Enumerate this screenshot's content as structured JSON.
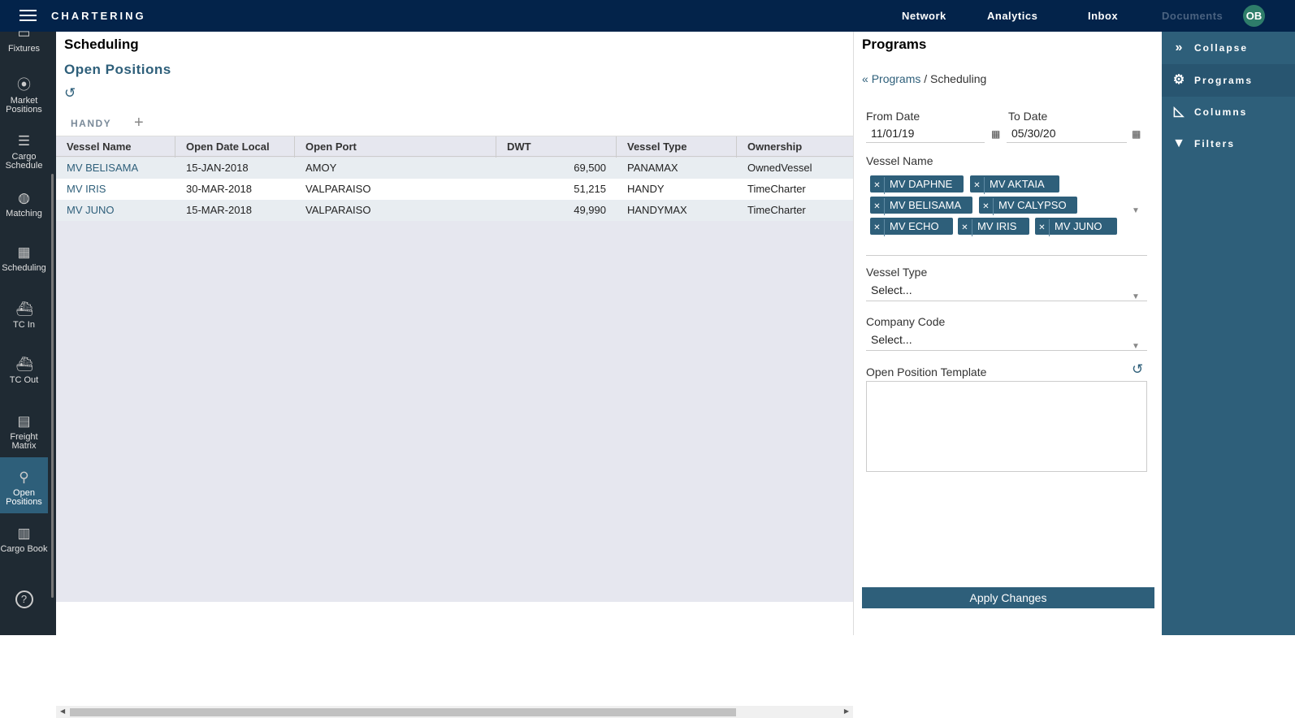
{
  "topbar": {
    "brand": "CHARTERING",
    "nav": [
      "Network",
      "Analytics",
      "Inbox",
      "Documents"
    ],
    "avatar": "OB"
  },
  "sidebar": {
    "items": [
      {
        "label": "Fixtures",
        "icon": "fixtures-icon"
      },
      {
        "label": "Market Positions",
        "icon": "map-pin-icon"
      },
      {
        "label": "Cargo Schedule",
        "icon": "gantt-icon"
      },
      {
        "label": "Matching",
        "icon": "globe-icon"
      },
      {
        "label": "Scheduling",
        "icon": "calendar-icon"
      },
      {
        "label": "TC In",
        "icon": "ship-in-icon"
      },
      {
        "label": "TC Out",
        "icon": "ship-out-icon"
      },
      {
        "label": "Freight Matrix",
        "icon": "matrix-icon"
      },
      {
        "label": "Open Positions",
        "icon": "pin-list-icon",
        "active": true
      },
      {
        "label": "Cargo Book",
        "icon": "book-icon"
      }
    ],
    "help_icon": "help-icon"
  },
  "main": {
    "title": "Scheduling",
    "subtitle": "Open Positions",
    "tab": "HANDY",
    "columns": [
      "Vessel Name",
      "Open Date Local",
      "Open Port",
      "DWT",
      "Vessel Type",
      "Ownership"
    ],
    "rows": [
      [
        "MV BELISAMA",
        "15-JAN-2018",
        "AMOY",
        "69,500",
        "PANAMAX",
        "OwnedVessel"
      ],
      [
        "MV IRIS",
        "30-MAR-2018",
        "VALPARAISO",
        "51,215",
        "HANDY",
        "TimeCharter"
      ],
      [
        "MV JUNO",
        "15-MAR-2018",
        "VALPARAISO",
        "49,990",
        "HANDYMAX",
        "TimeCharter"
      ]
    ]
  },
  "panel": {
    "title": "Programs",
    "crumb_link": "Programs",
    "crumb_sep": "/",
    "crumb_current": "Scheduling",
    "from_label": "From Date",
    "from_value": "11/01/19",
    "to_label": "To Date",
    "to_value": "05/30/20",
    "vessel_label": "Vessel Name",
    "vessels": [
      "MV DAPHNE",
      "MV AKTAIA",
      "MV BELISAMA",
      "MV CALYPSO",
      "MV ECHO",
      "MV IRIS",
      "MV JUNO"
    ],
    "vtype_label": "Vessel Type",
    "vtype_value": "Select...",
    "company_label": "Company Code",
    "company_value": "Select...",
    "template_label": "Open Position Template",
    "apply": "Apply Changes"
  },
  "rail": {
    "items": [
      {
        "label": "Collapse",
        "icon": "double-chevron-right-icon"
      },
      {
        "label": "Programs",
        "icon": "gear-icon",
        "active": true
      },
      {
        "label": "Columns",
        "icon": "ruler-triangle-icon"
      },
      {
        "label": "Filters",
        "icon": "filter-icon"
      }
    ]
  }
}
